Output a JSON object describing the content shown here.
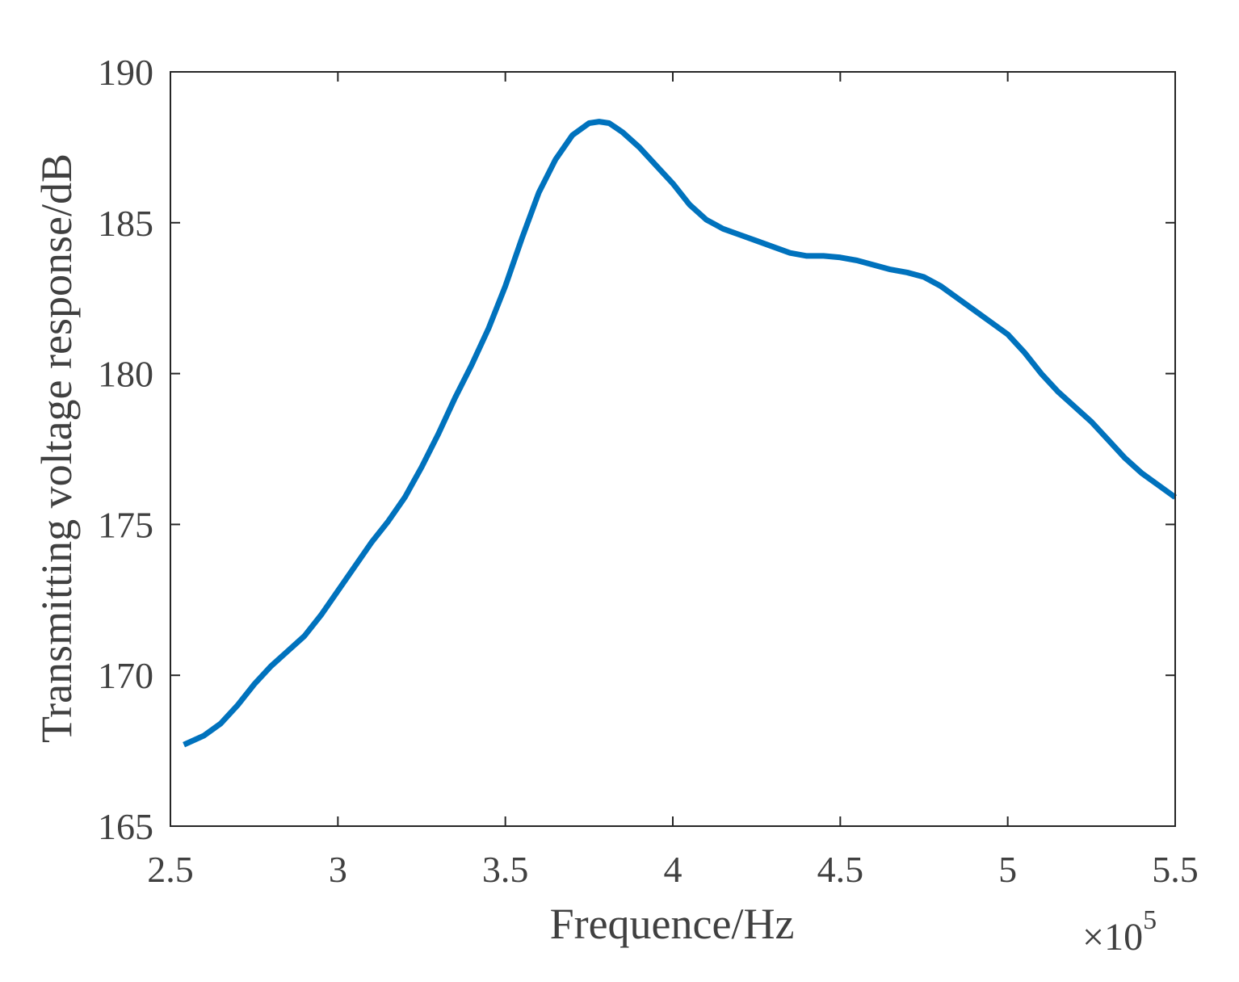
{
  "chart_data": {
    "type": "line",
    "title": "",
    "xlabel": "Frequence/Hz",
    "ylabel": "Transmitting voltage response/dB",
    "x_exponent_label": {
      "base": "×10",
      "exponent": "5"
    },
    "xlim": [
      2.5,
      5.5
    ],
    "ylim": [
      165,
      190
    ],
    "xticks": [
      2.5,
      3,
      3.5,
      4,
      4.5,
      5,
      5.5
    ],
    "xtick_labels": [
      "2.5",
      "3",
      "3.5",
      "4",
      "4.5",
      "5",
      "5.5"
    ],
    "yticks": [
      165,
      170,
      175,
      180,
      185,
      190
    ],
    "ytick_labels": [
      "165",
      "170",
      "175",
      "180",
      "185",
      "190"
    ],
    "grid": false,
    "line_color": "#0072BD",
    "axis_color": "#262626",
    "series": [
      {
        "x": [
          2.54,
          2.6,
          2.65,
          2.7,
          2.75,
          2.8,
          2.85,
          2.9,
          2.95,
          3.0,
          3.05,
          3.1,
          3.15,
          3.2,
          3.25,
          3.3,
          3.35,
          3.4,
          3.45,
          3.5,
          3.55,
          3.6,
          3.65,
          3.7,
          3.75,
          3.78,
          3.81,
          3.85,
          3.9,
          3.95,
          4.0,
          4.05,
          4.1,
          4.15,
          4.2,
          4.25,
          4.3,
          4.35,
          4.4,
          4.45,
          4.5,
          4.55,
          4.6,
          4.65,
          4.7,
          4.75,
          4.8,
          4.85,
          4.9,
          4.95,
          5.0,
          5.05,
          5.1,
          5.15,
          5.2,
          5.25,
          5.3,
          5.35,
          5.4,
          5.45,
          5.5
        ],
        "y": [
          167.7,
          168.0,
          168.4,
          169.0,
          169.7,
          170.3,
          170.8,
          171.3,
          172.0,
          172.8,
          173.6,
          174.4,
          175.1,
          175.9,
          176.9,
          178.0,
          179.2,
          180.3,
          181.5,
          182.9,
          184.5,
          186.0,
          187.1,
          187.9,
          188.3,
          188.35,
          188.3,
          188.0,
          187.5,
          186.9,
          186.3,
          185.6,
          185.1,
          184.8,
          184.6,
          184.4,
          184.2,
          184.0,
          183.9,
          183.9,
          183.85,
          183.75,
          183.6,
          183.45,
          183.35,
          183.2,
          182.9,
          182.5,
          182.1,
          181.7,
          181.3,
          180.7,
          180.0,
          179.4,
          178.9,
          178.4,
          177.8,
          177.2,
          176.7,
          176.3,
          175.9
        ]
      }
    ]
  }
}
